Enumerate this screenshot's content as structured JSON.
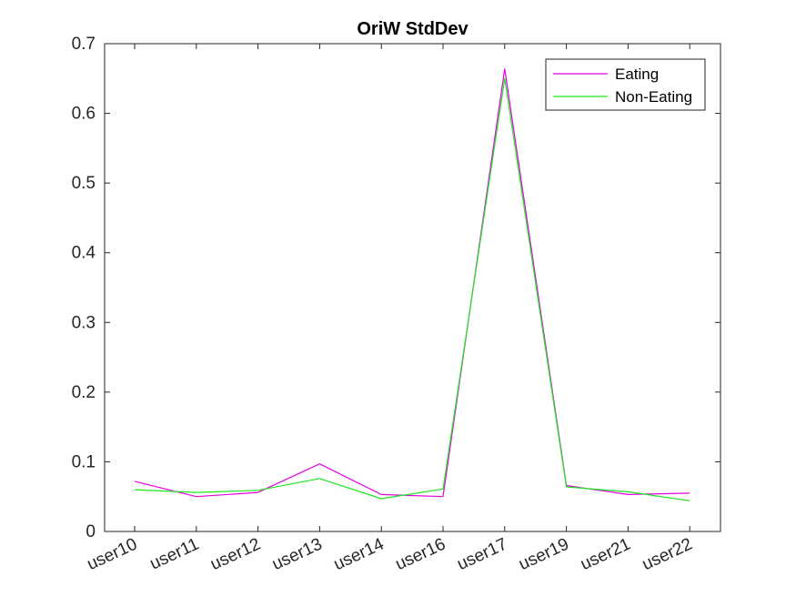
{
  "chart_data": {
    "type": "line",
    "title": "OriW StdDev",
    "xlabel": "",
    "ylabel": "",
    "categories": [
      "user10",
      "user11",
      "user12",
      "user13",
      "user14",
      "user16",
      "user17",
      "user19",
      "user21",
      "user22"
    ],
    "ylim": [
      0,
      0.7
    ],
    "yticks": [
      0,
      0.1,
      0.2,
      0.3,
      0.4,
      0.5,
      0.6,
      0.7
    ],
    "ytick_labels": [
      "0",
      "0.1",
      "0.2",
      "0.3",
      "0.4",
      "0.5",
      "0.6",
      "0.7"
    ],
    "grid": false,
    "legend_position": "top-right",
    "series": [
      {
        "name": "Eating",
        "color": "#e600e6",
        "values": [
          0.072,
          0.05,
          0.056,
          0.097,
          0.053,
          0.05,
          0.664,
          0.066,
          0.053,
          0.055
        ]
      },
      {
        "name": "Non-Eating",
        "color": "#1ee61e",
        "values": [
          0.06,
          0.056,
          0.059,
          0.076,
          0.047,
          0.061,
          0.65,
          0.064,
          0.057,
          0.044
        ]
      }
    ]
  }
}
